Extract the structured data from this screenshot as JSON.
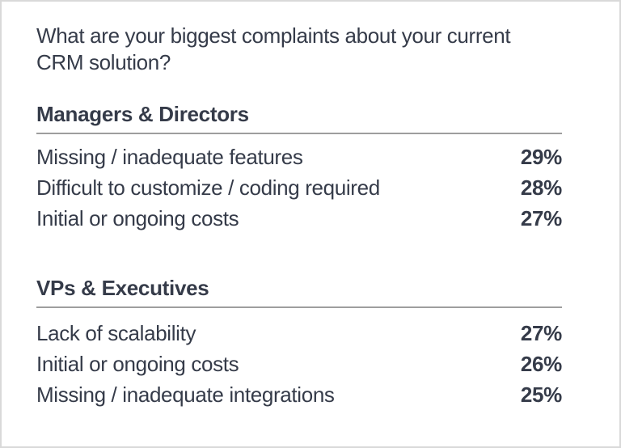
{
  "title": "What are your biggest complaints about your current CRM solution?",
  "colors": {
    "text": "#353b49",
    "divider": "#9e9e9e",
    "card_border": "#d9d9d9",
    "background": "#ffffff"
  },
  "sections": [
    {
      "heading": "Managers & Directors",
      "rows": [
        {
          "label": "Missing / inadequate features",
          "value": "29%"
        },
        {
          "label": "Difficult to customize / coding required",
          "value": "28%"
        },
        {
          "label": "Initial or ongoing costs",
          "value": "27%"
        }
      ]
    },
    {
      "heading": "VPs & Executives",
      "rows": [
        {
          "label": "Lack of scalability",
          "value": "27%"
        },
        {
          "label": "Initial or ongoing costs",
          "value": "26%"
        },
        {
          "label": "Missing / inadequate integrations",
          "value": "25%"
        }
      ]
    }
  ],
  "chart_data": {
    "type": "table",
    "title": "What are your biggest complaints about your current CRM solution?",
    "groups": [
      {
        "name": "Managers & Directors",
        "categories": [
          "Missing / inadequate features",
          "Difficult to customize / coding required",
          "Initial or ongoing costs"
        ],
        "values": [
          29,
          28,
          27
        ],
        "unit": "%"
      },
      {
        "name": "VPs & Executives",
        "categories": [
          "Lack of scalability",
          "Initial or ongoing costs",
          "Missing / inadequate integrations"
        ],
        "values": [
          27,
          26,
          25
        ],
        "unit": "%"
      }
    ]
  }
}
